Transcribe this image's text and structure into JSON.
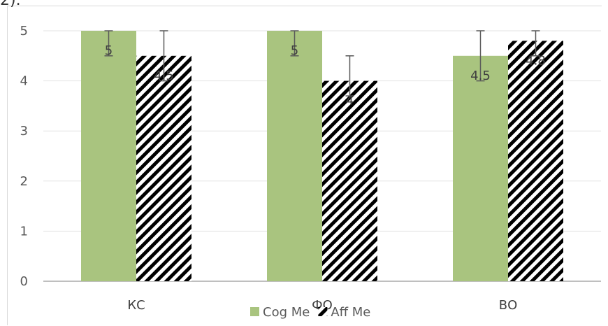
{
  "chart_data": {
    "type": "bar",
    "title": "",
    "xlabel": "",
    "ylabel": "",
    "categories": [
      "КС",
      "ФО",
      "ВО"
    ],
    "ylim": [
      0,
      5
    ],
    "yticks": [
      0,
      1,
      2,
      3,
      4,
      5
    ],
    "grid": true,
    "legend_position": "bottom",
    "series": [
      {
        "name": "Cog Me",
        "values": [
          5,
          5,
          4.5
        ],
        "error_low": [
          4.5,
          4.5,
          4.0
        ],
        "error_high": [
          5,
          5,
          5
        ],
        "color": "#a9c47f",
        "pattern": "solid"
      },
      {
        "name": "Aff Me",
        "values": [
          4.5,
          4,
          4.8
        ],
        "error_low": [
          4.0,
          3.7,
          4.5
        ],
        "error_high": [
          5,
          4.5,
          5
        ],
        "color": "#000000",
        "pattern": "diagonal-stripes"
      }
    ],
    "data_labels": [
      [
        "5",
        "5",
        "4.5"
      ],
      [
        "4.5",
        "4",
        "4.8"
      ]
    ]
  }
}
